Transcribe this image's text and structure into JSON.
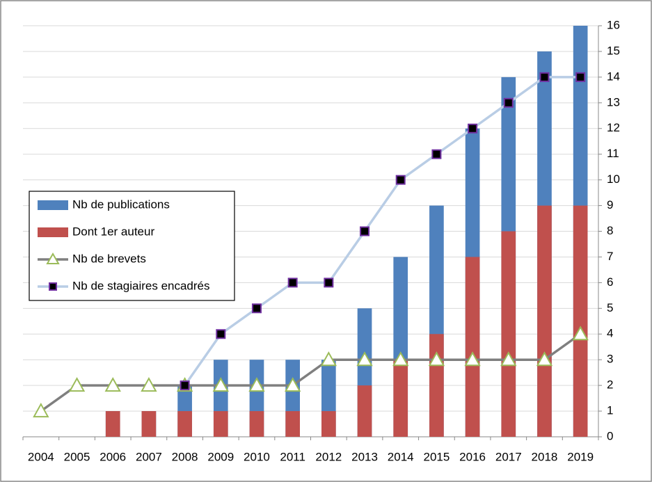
{
  "chart_data": {
    "type": "bar_line",
    "categories": [
      "2004",
      "2005",
      "2006",
      "2007",
      "2008",
      "2009",
      "2010",
      "2011",
      "2012",
      "2013",
      "2014",
      "2015",
      "2016",
      "2017",
      "2018",
      "2019"
    ],
    "series": [
      {
        "name": "Nb de publications",
        "kind": "bar",
        "color": "#4f81bd",
        "values": [
          0,
          0,
          1,
          1,
          2,
          3,
          3,
          3,
          3,
          5,
          7,
          9,
          12,
          14,
          15,
          16
        ]
      },
      {
        "name": "Dont 1er auteur",
        "kind": "bar",
        "color": "#c0504d",
        "values": [
          0,
          0,
          1,
          1,
          1,
          1,
          1,
          1,
          1,
          2,
          3,
          4,
          7,
          8,
          9,
          9
        ]
      },
      {
        "name": "Nb de brevets",
        "kind": "line",
        "marker": "triangle",
        "color": "#7f7f7f",
        "marker_color": "#9bbb59",
        "values": [
          1,
          2,
          2,
          2,
          2,
          2,
          2,
          2,
          3,
          3,
          3,
          3,
          3,
          3,
          3,
          4
        ]
      },
      {
        "name": "Nb de stagiaires encadrés",
        "kind": "line",
        "marker": "square",
        "color": "#b9cde5",
        "marker_color": "#7030a0",
        "values": [
          null,
          null,
          null,
          null,
          2,
          4,
          5,
          6,
          6,
          8,
          10,
          11,
          12,
          13,
          14,
          14
        ]
      }
    ],
    "ylim": [
      0,
      16
    ],
    "yticks": [
      0,
      1,
      2,
      3,
      4,
      5,
      6,
      7,
      8,
      9,
      10,
      11,
      12,
      13,
      14,
      15,
      16
    ],
    "y_axis_side": "right",
    "grid": true,
    "legend": "left"
  }
}
